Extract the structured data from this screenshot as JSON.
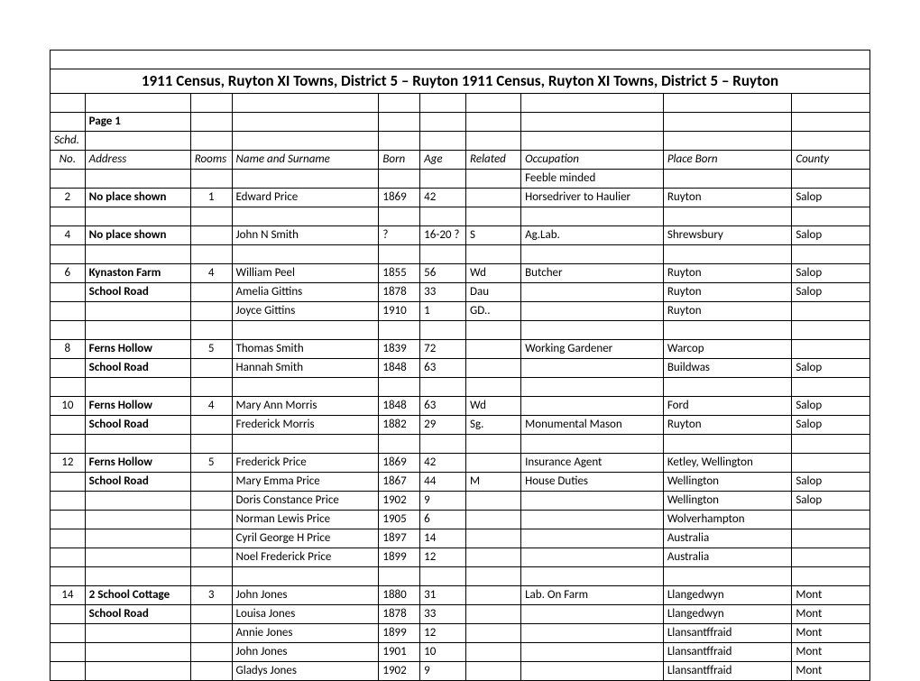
{
  "title": "1911 Census, Ruyton XI Towns, District 5 – Ruyton 1911 Census, Ruyton XI Towns, District 5 – Ruyton",
  "page_label": "Page 1",
  "schd_label": "Schd.",
  "columns": {
    "no": "No.",
    "address": "Address",
    "rooms": "Rooms",
    "name": "Name and Surname",
    "born": "Born",
    "age": "Age",
    "related": "Related",
    "occupation": "Occupation",
    "place_born": "Place Born",
    "county": "County"
  },
  "subnote": "Feeble minded",
  "rows": [
    {
      "no": "2",
      "addr": "No place shown",
      "addrBold": true,
      "rooms": "1",
      "name": "Edward Price",
      "born": "1869",
      "age": "42",
      "rel": "",
      "occ": "Horsedriver to Haulier",
      "place": "Ruyton",
      "county": "Salop"
    },
    {
      "spacer": true
    },
    {
      "no": "4",
      "addr": "No place shown",
      "addrBold": true,
      "rooms": "",
      "name": "John N Smith",
      "born": "?",
      "age": "16-20 ?",
      "rel": "S",
      "occ": "Ag.Lab.",
      "place": "Shrewsbury",
      "county": "Salop"
    },
    {
      "spacer": true
    },
    {
      "no": "6",
      "addr": "Kynaston Farm",
      "addrBold": true,
      "rooms": "4",
      "name": "William Peel",
      "born": "1855",
      "age": "56",
      "rel": "Wd",
      "occ": "Butcher",
      "place": "Ruyton",
      "county": "Salop"
    },
    {
      "no": "",
      "addr": "School Road",
      "addrBold": true,
      "rooms": "",
      "name": "Amelia Gittins",
      "born": "1878",
      "age": "33",
      "rel": "Dau",
      "occ": "",
      "place": "Ruyton",
      "county": "Salop"
    },
    {
      "no": "",
      "addr": "",
      "rooms": "",
      "name": "Joyce Gittins",
      "born": "1910",
      "age": "1",
      "rel": "GD..",
      "occ": "",
      "place": "Ruyton",
      "county": ""
    },
    {
      "spacer": true
    },
    {
      "no": "8",
      "addr": "Ferns Hollow",
      "addrBold": true,
      "rooms": "5",
      "name": "Thomas Smith",
      "born": "1839",
      "age": "72",
      "rel": "",
      "occ": "Working Gardener",
      "place": "Warcop",
      "county": ""
    },
    {
      "no": "",
      "addr": "School Road",
      "addrBold": true,
      "rooms": "",
      "name": "Hannah Smith",
      "born": "1848",
      "age": "63",
      "rel": "",
      "occ": "",
      "place": "Buildwas",
      "county": "Salop"
    },
    {
      "spacer": true
    },
    {
      "no": "10",
      "addr": "Ferns Hollow",
      "addrBold": true,
      "rooms": "4",
      "name": "Mary Ann  Morris",
      "born": "1848",
      "age": "63",
      "rel": "Wd",
      "occ": "",
      "place": "Ford",
      "county": "Salop"
    },
    {
      "no": "",
      "addr": "School Road",
      "addrBold": true,
      "rooms": "",
      "name": "Frederick Morris",
      "born": "1882",
      "age": "29",
      "rel": "Sg.",
      "occ": "Monumental Mason",
      "place": "Ruyton",
      "county": "Salop"
    },
    {
      "spacer": true
    },
    {
      "no": "12",
      "addr": "Ferns Hollow",
      "addrBold": true,
      "rooms": "5",
      "name": "Frederick Price",
      "born": "1869",
      "age": "42",
      "rel": "",
      "occ": "Insurance Agent",
      "place": "Ketley, Wellington",
      "county": ""
    },
    {
      "no": "",
      "addr": "School Road",
      "addrBold": true,
      "rooms": "",
      "name": "Mary Emma Price",
      "born": "1867",
      "age": "44",
      "rel": "M",
      "occ": "House Duties",
      "place": "Wellington",
      "county": "Salop"
    },
    {
      "no": "",
      "addr": "",
      "rooms": "",
      "name": "Doris Constance Price",
      "born": "1902",
      "age": "9",
      "rel": "",
      "occ": "",
      "place": "Wellington",
      "county": "Salop"
    },
    {
      "no": "",
      "addr": "",
      "rooms": "",
      "name": "Norman Lewis Price",
      "born": "1905",
      "age": "6",
      "rel": "",
      "occ": "",
      "place": "Wolverhampton",
      "county": ""
    },
    {
      "no": "",
      "addr": "",
      "rooms": "",
      "name": "Cyril George H Price",
      "born": "1897",
      "age": "14",
      "rel": "",
      "occ": "",
      "place": "Australia",
      "county": ""
    },
    {
      "no": "",
      "addr": "",
      "rooms": "",
      "name": "Noel Frederick Price",
      "born": "1899",
      "age": "12",
      "rel": "",
      "occ": "",
      "place": "Australia",
      "county": ""
    },
    {
      "spacer": true
    },
    {
      "no": "14",
      "addr": "2 School Cottage",
      "addrBold": true,
      "rooms": "3",
      "name": "John Jones",
      "born": "1880",
      "age": "31",
      "rel": "",
      "occ": "Lab. On Farm",
      "place": "Llangedwyn",
      "county": "Mont"
    },
    {
      "no": "",
      "addr": "School Road",
      "addrBold": true,
      "rooms": "",
      "name": "Louisa Jones",
      "born": "1878",
      "age": "33",
      "rel": "",
      "occ": "",
      "place": "Llangedwyn",
      "county": "Mont"
    },
    {
      "no": "",
      "addr": "",
      "rooms": "",
      "name": "Annie Jones",
      "born": "1899",
      "age": "12",
      "rel": "",
      "occ": "",
      "place": "Llansantffraid",
      "county": "Mont"
    },
    {
      "no": "",
      "addr": "",
      "rooms": "",
      "name": "John Jones",
      "born": "1901",
      "age": "10",
      "rel": "",
      "occ": "",
      "place": "Llansantffraid",
      "county": "Mont"
    },
    {
      "no": "",
      "addr": "",
      "rooms": "",
      "name": "Gladys Jones",
      "born": "1902",
      "age": "9",
      "rel": "",
      "occ": "",
      "place": "Llansantffraid",
      "county": "Mont"
    }
  ]
}
